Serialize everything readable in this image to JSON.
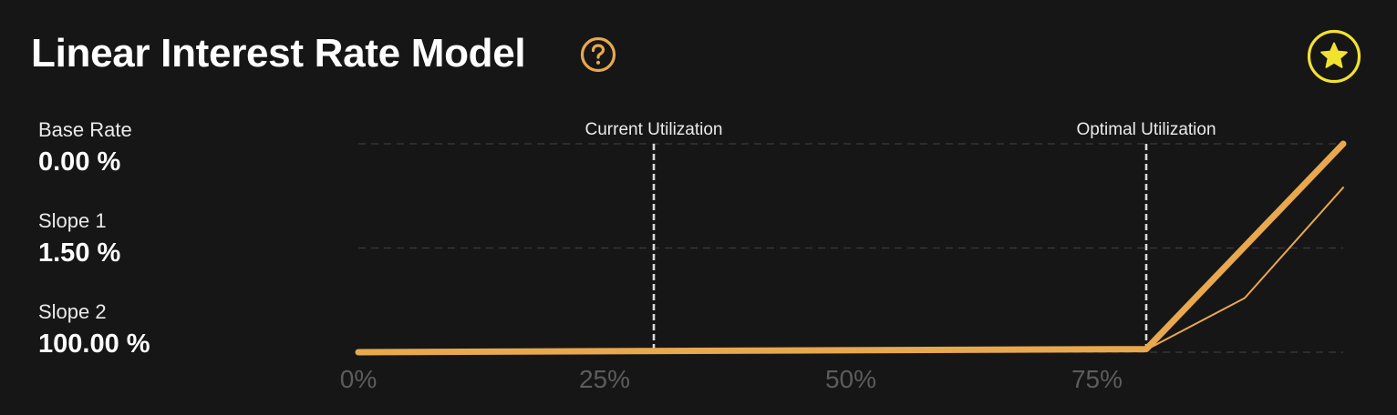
{
  "header": {
    "title": "Linear Interest Rate Model",
    "help_icon": "question-circle-icon",
    "favorite_icon": "star-icon"
  },
  "params": [
    {
      "label": "Base Rate",
      "value": "0.00 %"
    },
    {
      "label": "Slope 1",
      "value": "1.50 %"
    },
    {
      "label": "Slope 2",
      "value": "100.00 %"
    }
  ],
  "colors": {
    "background": "#161616",
    "accent": "#E8A84E",
    "star": "#F2E230",
    "grid": "#3a3a3a",
    "marker": "#d8d8d8",
    "tick": "#5c5c5c"
  },
  "chart_data": {
    "type": "line",
    "title": "",
    "xlabel": "",
    "ylabel": "",
    "xlim": [
      0,
      100
    ],
    "ylim": [
      0,
      100
    ],
    "x_ticks": [
      0,
      25,
      50,
      75
    ],
    "x_tick_labels": [
      "0%",
      "25%",
      "50%",
      "75%"
    ],
    "grid": "horizontal-dashed",
    "series": [
      {
        "style": "thick",
        "x": [
          0,
          80,
          100
        ],
        "y": [
          0,
          1.5,
          100
        ]
      },
      {
        "style": "thin",
        "x": [
          0,
          80,
          90,
          100
        ],
        "y": [
          0,
          1.2,
          26,
          79
        ]
      }
    ],
    "markers": [
      {
        "label": "Current Utilization",
        "x": 30
      },
      {
        "label": "Optimal Utilization",
        "x": 80
      }
    ]
  }
}
